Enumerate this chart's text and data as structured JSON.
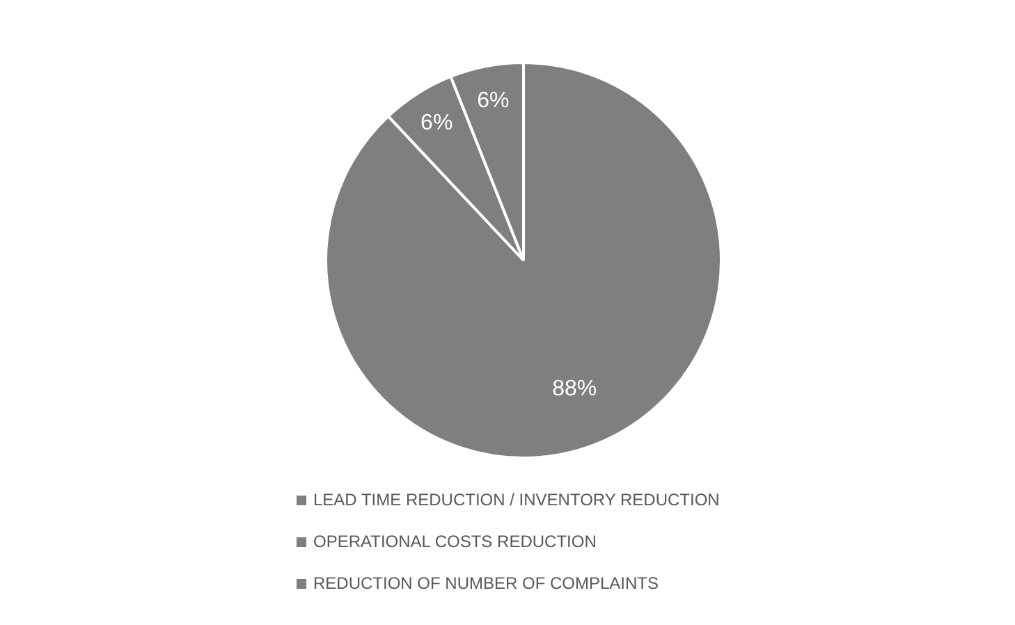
{
  "chart_data": {
    "type": "pie",
    "categories": [
      "LEAD TIME REDUCTION / INVENTORY REDUCTION",
      "OPERATIONAL COSTS REDUCTION",
      "REDUCTION OF NUMBER OF COMPLAINTS"
    ],
    "values": [
      88,
      6,
      6
    ],
    "colors": [
      "#7f7f7f",
      "#7f7f7f",
      "#7f7f7f"
    ],
    "value_labels": [
      "88%",
      "6%",
      "6%"
    ],
    "legend": "bottom"
  }
}
